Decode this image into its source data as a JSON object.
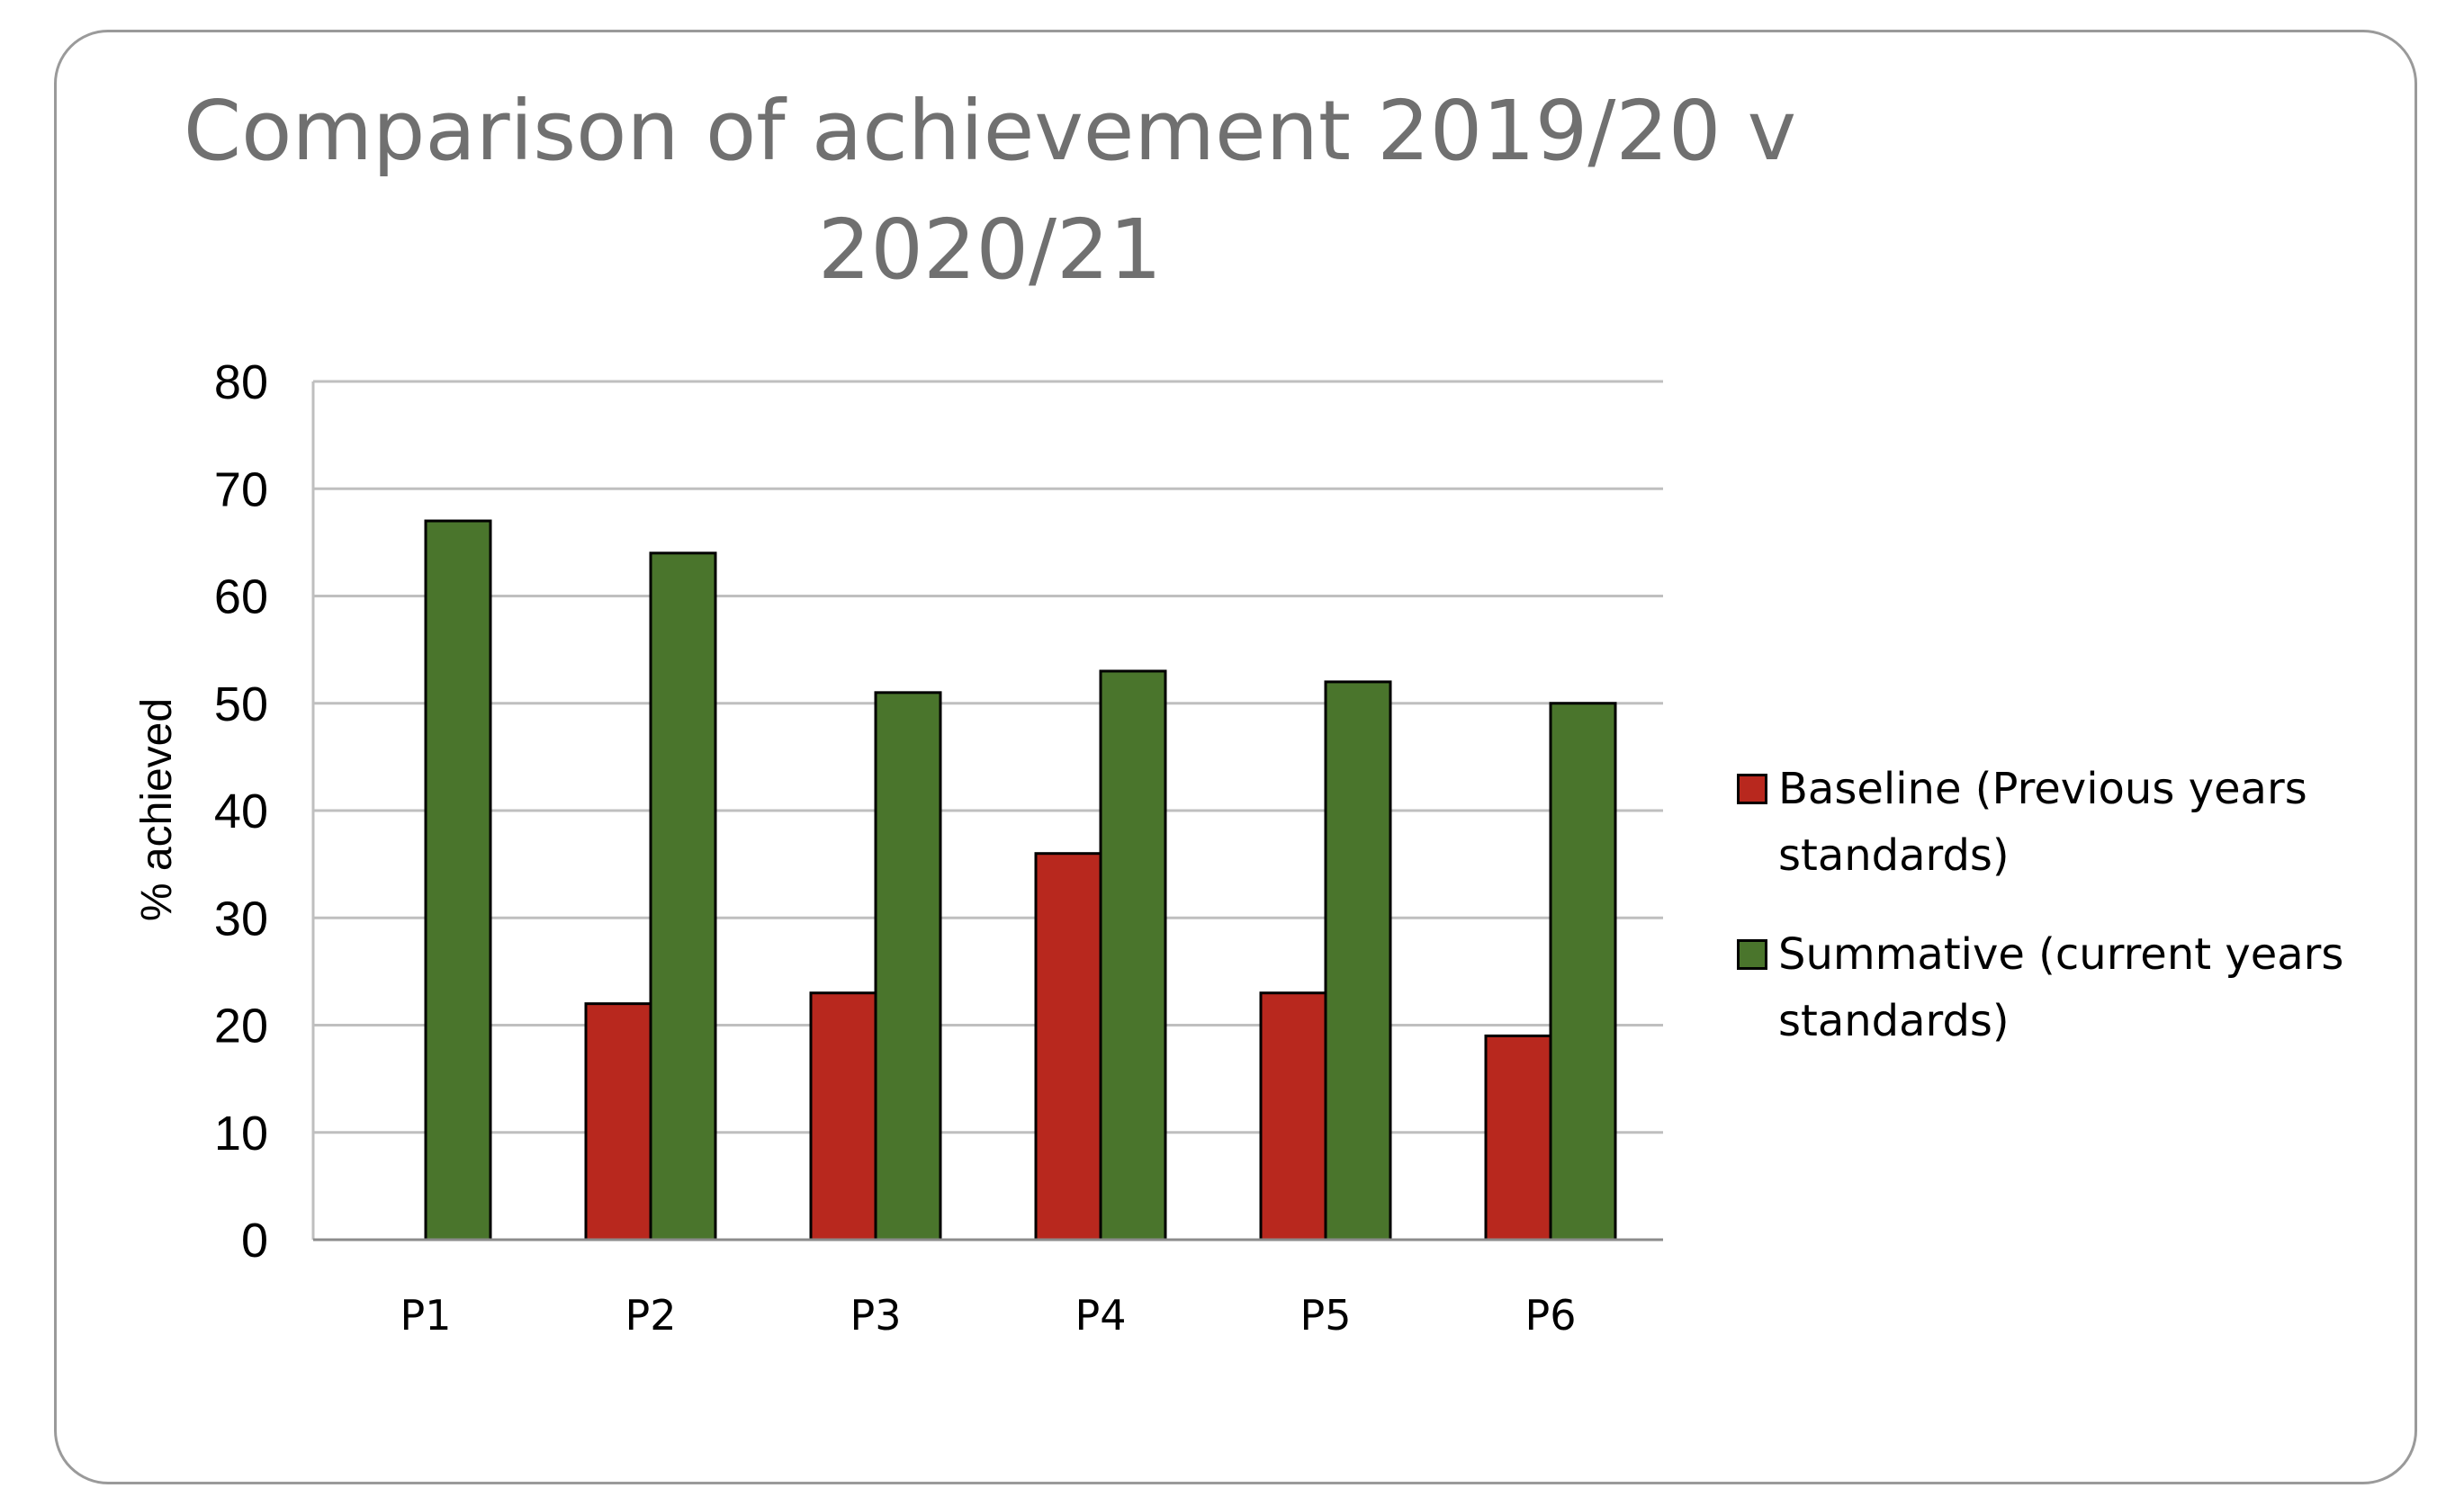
{
  "chart_data": {
    "type": "bar",
    "title": "Comparison of achievement 2019/20 v 2020/21",
    "ylabel": "% achieved",
    "xlabel": "",
    "categories": [
      "P1",
      "P2",
      "P3",
      "P4",
      "P5",
      "P6"
    ],
    "ylim": [
      0,
      80
    ],
    "yticks": [
      "0",
      "10",
      "20",
      "30",
      "40",
      "50",
      "60",
      "70",
      "80"
    ],
    "grid": true,
    "legend_position": "right",
    "series": [
      {
        "name": "Baseline (Previous years standards)",
        "color": "#B8281E",
        "values": [
          null,
          22,
          23,
          36,
          23,
          19
        ]
      },
      {
        "name": "Summative (current years standards)",
        "color": "#4A752C",
        "values": [
          67,
          64,
          51,
          53,
          52,
          50
        ]
      }
    ]
  }
}
